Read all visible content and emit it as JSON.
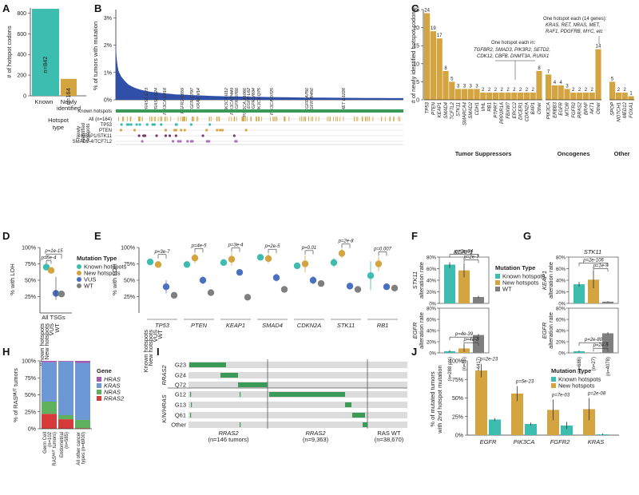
{
  "colors": {
    "known": "#3dbcb0",
    "new": "#d3a440",
    "vus": "#4a70c0",
    "wt": "#7f7f7f",
    "green_bar": "#3c9a58",
    "hras": "#a45ab0",
    "kras": "#6d98d6",
    "nras": "#5eb25e",
    "rras2": "#d63a3a"
  },
  "chart_data": [
    {
      "panel": "A",
      "type": "bar",
      "ylabel": "# of hotspot codons",
      "xlabel": "Hotspot type",
      "categories": [
        "Known",
        "Newly identified"
      ],
      "values": [
        842,
        164
      ],
      "value_labels": [
        "n=842",
        "n=164"
      ],
      "yticks": [
        "0",
        "200",
        "400",
        "600",
        "800"
      ],
      "ylim": [
        0,
        850
      ]
    },
    {
      "panel": "B",
      "type": "area",
      "ylabel": "% of tumors with mutation",
      "yticks": [
        "0%",
        "1%",
        "2%",
        "3%"
      ],
      "ylim": [
        0,
        3.3
      ],
      "y_profile": [
        3.3,
        2.4,
        1.9,
        1.6,
        1.4,
        1.2,
        1.05,
        0.95,
        0.85,
        0.78,
        0.7,
        0.62,
        0.55,
        0.5,
        0.45,
        0.41,
        0.37,
        0.34,
        0.31,
        0.29,
        0.27,
        0.25,
        0.23,
        0.22,
        0.2,
        0.19,
        0.18,
        0.17,
        0.16,
        0.15,
        0.14,
        0.13,
        0.125,
        0.12,
        0.115,
        0.11,
        0.105,
        0.1,
        0.095,
        0.09,
        0.085,
        0.08,
        0.078,
        0.075,
        0.072,
        0.07,
        0.067,
        0.065,
        0.062,
        0.06
      ],
      "annotations": [
        "RRAS2 G23",
        "RRAS2 G24",
        "PIK3CA E418",
        "FGFR2 K659",
        "EGFR C797",
        "KRAS V14",
        "PIK3CA I112",
        "PIK3CA P449",
        "EGFR S768",
        "PIK3CA A1066",
        "EGFR L62",
        "EGFR V834",
        "PIK3CA Q75",
        "PIK3CA D725",
        "EGFR A750",
        "EGFR W450",
        "MET D1228"
      ],
      "track_header": "Known hotspots",
      "track_group_label": "Newly identified hotspots",
      "tracks": [
        "All (n=164)",
        "TP53",
        "PTEN",
        "KEAP1/STK11",
        "SMAD2-4/TCF7L2"
      ]
    },
    {
      "panel": "C",
      "type": "bar",
      "ylabel": "# of newly identified hotspot codons",
      "yticks": [
        "0",
        "5",
        "10",
        "15",
        "20",
        "25"
      ],
      "ylim": [
        0,
        25
      ],
      "groups": [
        {
          "name": "Tumor Suppressors",
          "categories": [
            "TP53",
            "PTEN",
            "KEAP1",
            "SMAD4",
            "TCF7L2",
            "STK11",
            "SMARCA4",
            "SMAD2",
            "CDH1",
            "VHL",
            "RB1",
            "PTPRT",
            "PPP2R1A",
            "FBXW7",
            "ERCC2",
            "DICER1",
            "CDKN2A",
            "BAP1",
            "Other"
          ],
          "values": [
            24,
            19,
            17,
            8,
            5,
            3,
            3,
            3,
            3,
            2,
            2,
            2,
            2,
            2,
            2,
            2,
            2,
            2,
            8
          ]
        },
        {
          "name": "Oncogenes",
          "categories": [
            "PIK3CA",
            "ERBB3",
            "EGFR",
            "MTOR",
            "FGFR2",
            "RRAS2",
            "BRAF",
            "AKT1",
            "Other"
          ],
          "values": [
            7,
            4,
            4,
            3,
            2,
            2,
            2,
            2,
            14
          ]
        },
        {
          "name": "Other",
          "categories": [
            "SPOP",
            "NOTCH1",
            "MED12",
            "FOXA1"
          ],
          "values": [
            5,
            2,
            2,
            1
          ]
        }
      ],
      "notes": [
        {
          "head": "One hotspot each in:",
          "genes": "TGFBR2, SMAD3, PIK3R2, SETD2, CDK12, CBFB, DNMT3A, RUNX1"
        },
        {
          "head": "One hotspot each (14 genes):",
          "genes": "KRAS, RET, NRAS, MET, RAF1, PDGFRB, MYC, etc"
        }
      ]
    },
    {
      "panel": "D",
      "type": "scatter",
      "ylabel": "% with LOH",
      "yticks": [
        "25%",
        "50%",
        "75%",
        "100%"
      ],
      "ylim": [
        0,
        100
      ],
      "group": "All TSGs",
      "categories": [
        "Known hotspots",
        "New hotspots",
        "VUS",
        "WT"
      ],
      "values": [
        70,
        65,
        30,
        29
      ],
      "pvalues": [
        "p=1e-15",
        "p=5e-4"
      ],
      "legend_title": "Mutation Type",
      "legend": [
        "Known hotspots",
        "New hotspots",
        "VUS",
        "WT"
      ]
    },
    {
      "panel": "E",
      "type": "scatter",
      "ylabel": "% with LOH",
      "yticks": [
        "25%",
        "50%",
        "75%",
        "100%"
      ],
      "ylim": [
        0,
        100
      ],
      "x_group_labels": [
        "Known hotspots",
        "New hotspots",
        "VUS",
        "WT"
      ],
      "genes": [
        {
          "gene": "TP53",
          "pval": "p=3e-7",
          "values": [
            78,
            74,
            40,
            27
          ],
          "err": [
            [
              74,
              82
            ],
            [
              70,
              78
            ],
            [
              30,
              50
            ],
            [
              25,
              29
            ]
          ]
        },
        {
          "gene": "PTEN",
          "pval": "p=4e-5",
          "values": [
            74,
            84,
            50,
            31
          ],
          "err": [
            [
              70,
              78
            ],
            [
              76,
              91
            ],
            [
              44,
              56
            ],
            [
              29,
              33
            ]
          ]
        },
        {
          "gene": "KEAP1",
          "pval": "p=3e-4",
          "values": [
            77,
            82,
            62,
            24
          ],
          "err": [
            [
              72,
              82
            ],
            [
              72,
              92
            ],
            [
              58,
              66
            ],
            [
              22,
              26
            ]
          ]
        },
        {
          "gene": "SMAD4",
          "pval": "p=2e-5",
          "values": [
            85,
            83,
            54,
            36
          ],
          "err": [
            [
              82,
              88
            ],
            [
              76,
              90
            ],
            [
              48,
              60
            ],
            [
              34,
              38
            ]
          ]
        },
        {
          "gene": "CDKN2A",
          "pval": "p=0.01",
          "values": [
            72,
            75,
            50,
            45
          ],
          "err": [
            [
              68,
              76
            ],
            [
              62,
              88
            ],
            [
              44,
              56
            ],
            [
              43,
              47
            ]
          ]
        },
        {
          "gene": "STK11",
          "pval": "p=2e-8",
          "values": [
            77,
            91,
            41,
            36
          ],
          "err": [
            [
              70,
              84
            ],
            [
              84,
              98
            ],
            [
              36,
              46
            ],
            [
              34,
              38
            ]
          ]
        },
        {
          "gene": "RB1",
          "pval": "p=0.007",
          "values": [
            57,
            75,
            40,
            38
          ],
          "err": [
            [
              35,
              79
            ],
            [
              64,
              86
            ],
            [
              36,
              44
            ],
            [
              36,
              40
            ]
          ]
        }
      ]
    },
    {
      "panel": "F",
      "type": "bar",
      "title": "KEAP1",
      "subplots": [
        {
          "ylabel": "STK11 alteration rate",
          "values": [
            67,
            57,
            11
          ],
          "err": [
            [
              61,
              71
            ],
            [
              45,
              69
            ],
            [
              9,
              13
            ]
          ],
          "pvals": [
            "p=2e-34",
            "p=2e-7"
          ],
          "yticks": [
            "0%",
            "20%",
            "40%",
            "60%",
            "80%"
          ]
        },
        {
          "ylabel": "EGFR alteration rate",
          "values": [
            3,
            8,
            32
          ],
          "err": [
            [
              1,
              5
            ],
            [
              2,
              14
            ],
            [
              30,
              34
            ]
          ],
          "pvals": [
            "p=4e-39",
            "p=4e-8"
          ],
          "yticks": [
            "0%",
            "20%",
            "40%",
            "60%",
            "80%"
          ]
        }
      ],
      "categories": [
        "(n=288 pts)",
        "(n=86)",
        "(n=4417)"
      ],
      "legend_title": "Mutation Type",
      "legend": [
        "Known hotspots",
        "New hotspots",
        "WT"
      ]
    },
    {
      "panel": "G",
      "type": "bar",
      "title": "STK11",
      "subplots": [
        {
          "ylabel": "KEAP1 alteration rate",
          "values": [
            33,
            41,
            3
          ],
          "err": [
            [
              29,
              37
            ],
            [
              26,
              56
            ],
            [
              2,
              4
            ]
          ],
          "pvals": [
            "p=2e-106",
            "p=1e-9"
          ],
          "yticks": [
            "0%",
            "20%",
            "40%",
            "60%",
            "80%"
          ]
        },
        {
          "ylabel": "EGFR alteration rate",
          "values": [
            3,
            0,
            35
          ],
          "err": [
            [
              2,
              4
            ],
            [
              0,
              0
            ],
            [
              33,
              37
            ]
          ],
          "pvals": [
            "p=2e-80",
            "p=2e-5"
          ],
          "yticks": [
            "0%",
            "20%",
            "40%",
            "60%",
            "80%"
          ]
        }
      ],
      "categories": [
        "(n=686)",
        "(n=27)",
        "(n=4078)"
      ]
    },
    {
      "panel": "H",
      "type": "bar",
      "ylabel": "% of RASᴹᵁᵀ tumors",
      "yticks": [
        "0%",
        "25%",
        "50%",
        "75%",
        "100%"
      ],
      "categories": [
        "Germ Cell (n=102 RASᴹᵁᵀ tumors)",
        "Endometrial (n=585)",
        "All other cancer types (n=6900)"
      ],
      "series": [
        {
          "name": "RRAS2",
          "values": [
            22,
            14,
            1
          ]
        },
        {
          "name": "NRAS",
          "values": [
            18,
            6,
            12
          ]
        },
        {
          "name": "KRAS",
          "values": [
            58,
            79,
            84
          ]
        },
        {
          "name": "HRAS",
          "values": [
            2,
            1,
            3
          ]
        }
      ],
      "legend_title": "Gene",
      "legend": [
        "HRAS",
        "KRAS",
        "NRAS",
        "RRAS2"
      ]
    },
    {
      "panel": "I",
      "type": "heatmap",
      "rows": [
        "G23",
        "G24",
        "Q72",
        "G12",
        "G13",
        "Q61",
        "Other"
      ],
      "row_groups": [
        "RRAS2",
        "K/N/HRAS"
      ],
      "columns": [
        "RRAS2MUT (n=146 tumors)",
        "RRAS2WT (n=9,363)",
        "RAS WT (n=38,670)"
      ]
    },
    {
      "panel": "J",
      "type": "bar",
      "ylabel": "% of mutated tumors with 2nd hotspot mutation",
      "yticks": [
        "0%",
        "25%",
        "50%",
        "75%",
        "100%"
      ],
      "ylim": [
        0,
        100
      ],
      "categories": [
        "EGFR",
        "PIK3CA",
        "FGFR2",
        "KRAS"
      ],
      "series": [
        {
          "name": "New hotspots",
          "values": [
            87,
            56,
            34,
            35
          ],
          "err": [
            [
              78,
              96
            ],
            [
              46,
              66
            ],
            [
              20,
              48
            ],
            [
              20,
              50
            ]
          ]
        },
        {
          "name": "Known hotspots",
          "values": [
            21,
            15,
            13,
            1
          ],
          "err": [
            [
              19,
              23
            ],
            [
              13,
              17
            ],
            [
              8,
              18
            ],
            [
              0,
              2
            ]
          ]
        }
      ],
      "pvals": [
        "p=2e-23",
        "p=5e-23",
        "p=7e-03",
        "p=2e-08"
      ],
      "legend_title": "Mutation Type",
      "legend": [
        "Known hotspots",
        "New hotspots"
      ]
    }
  ],
  "panel_letters": [
    "A",
    "B",
    "C",
    "D",
    "E",
    "F",
    "G",
    "H",
    "I",
    "J"
  ],
  "superscripts": {
    "MUT": "MUT",
    "WT": "WT"
  }
}
